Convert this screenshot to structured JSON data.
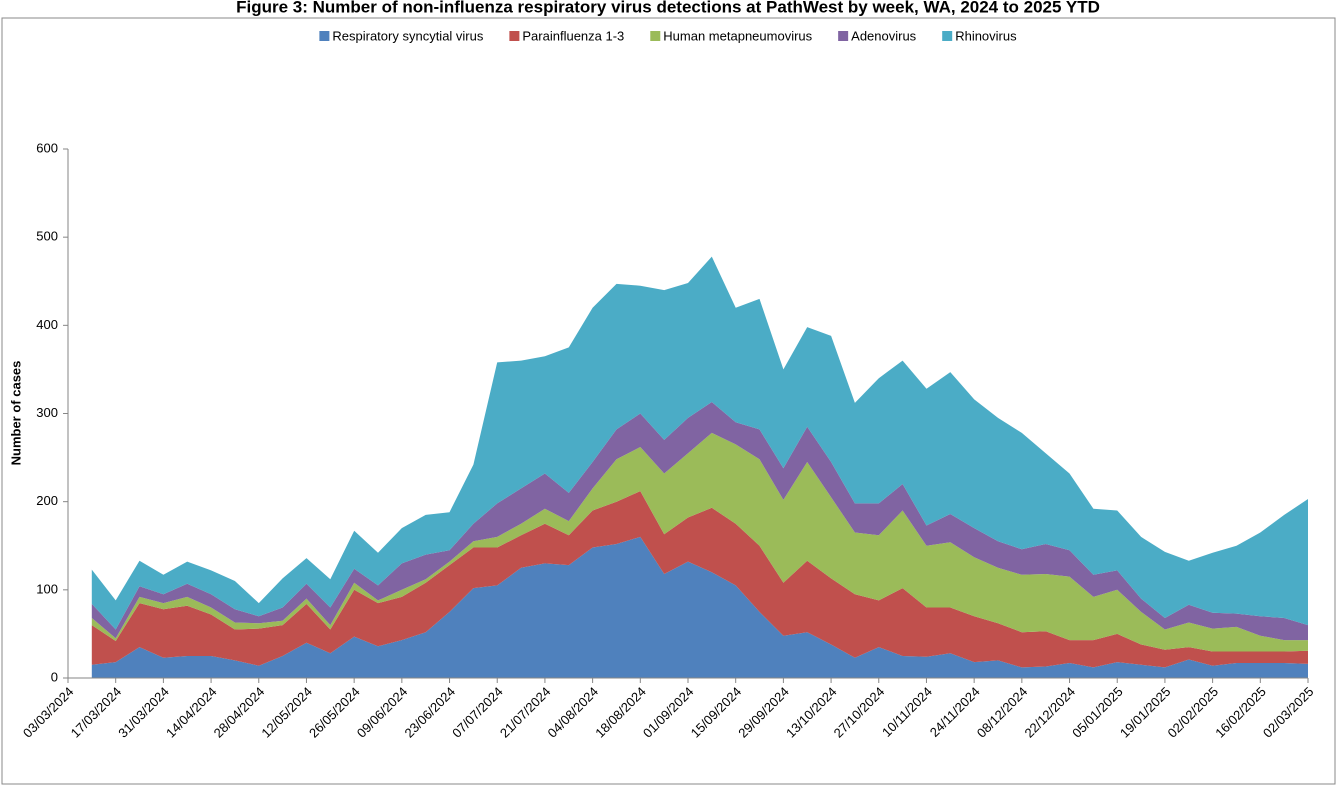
{
  "chart_data": {
    "type": "stacked_area",
    "title": "Figure 3: Number of non-influenza respiratory virus detections at PathWest by week, WA, 2024 to 2025 YTD",
    "y_axis_label": "Number of cases",
    "ylim": [
      0,
      600
    ],
    "yticks": [
      0,
      100,
      200,
      300,
      400,
      500,
      600
    ],
    "grid": false,
    "legend": "top",
    "categories": [
      "03/03/2024",
      null,
      "17/03/2024",
      null,
      "31/03/2024",
      null,
      "14/04/2024",
      null,
      "28/04/2024",
      null,
      "12/05/2024",
      null,
      "26/05/2024",
      null,
      "09/06/2024",
      null,
      "23/06/2024",
      null,
      "07/07/2024",
      null,
      "21/07/2024",
      null,
      "04/08/2024",
      null,
      "18/08/2024",
      null,
      "01/09/2024",
      null,
      "15/09/2024",
      null,
      "29/09/2024",
      null,
      "13/10/2024",
      null,
      "27/10/2024",
      null,
      "10/11/2024",
      null,
      "24/11/2024",
      null,
      "08/12/2024",
      null,
      "22/12/2024",
      null,
      "05/01/2025",
      null,
      "19/01/2025",
      null,
      "02/02/2025",
      null,
      "16/02/2025",
      null,
      "02/03/2025"
    ],
    "series": [
      {
        "name": "Respiratory syncytial virus",
        "color": "#4f81bd",
        "values": [
          null,
          15,
          18,
          35,
          23,
          25,
          25,
          20,
          14,
          25,
          40,
          28,
          47,
          36,
          43,
          52,
          75,
          102,
          105,
          125,
          130,
          128,
          148,
          152,
          160,
          118,
          132,
          120,
          105,
          75,
          48,
          52,
          38,
          23,
          35,
          25,
          24,
          28,
          18,
          20,
          12,
          13,
          17,
          12,
          18,
          15,
          12,
          21,
          14,
          17,
          17,
          17,
          16
        ]
      },
      {
        "name": "Parainfluenza 1-3",
        "color": "#c0504d",
        "values": [
          null,
          45,
          24,
          50,
          55,
          57,
          47,
          35,
          42,
          35,
          44,
          27,
          53,
          49,
          49,
          56,
          53,
          46,
          43,
          37,
          45,
          34,
          42,
          48,
          52,
          45,
          50,
          73,
          70,
          75,
          60,
          81,
          75,
          72,
          53,
          77,
          56,
          52,
          52,
          42,
          40,
          40,
          26,
          31,
          32,
          23,
          20,
          14,
          16,
          13,
          13,
          13,
          15
        ]
      },
      {
        "name": "Human metapneumovirus",
        "color": "#9bbb59",
        "values": [
          null,
          8,
          3,
          7,
          7,
          10,
          8,
          8,
          6,
          5,
          6,
          5,
          8,
          3,
          8,
          4,
          4,
          7,
          12,
          13,
          17,
          16,
          25,
          48,
          50,
          69,
          73,
          85,
          90,
          98,
          94,
          112,
          92,
          70,
          74,
          88,
          70,
          74,
          67,
          63,
          65,
          65,
          72,
          49,
          50,
          37,
          23,
          28,
          26,
          28,
          18,
          13,
          12
        ]
      },
      {
        "name": "Adenovirus",
        "color": "#8064a2",
        "values": [
          null,
          16,
          10,
          12,
          10,
          15,
          15,
          15,
          8,
          15,
          17,
          20,
          16,
          17,
          30,
          28,
          13,
          20,
          38,
          40,
          40,
          32,
          30,
          34,
          38,
          38,
          40,
          35,
          25,
          34,
          36,
          40,
          40,
          33,
          36,
          30,
          23,
          32,
          33,
          30,
          29,
          34,
          30,
          25,
          22,
          15,
          13,
          20,
          18,
          15,
          22,
          25,
          17
        ]
      },
      {
        "name": "Rhinovirus",
        "color": "#4bacc6",
        "values": [
          null,
          39,
          33,
          29,
          22,
          25,
          27,
          32,
          15,
          33,
          29,
          32,
          43,
          37,
          40,
          45,
          43,
          67,
          160,
          145,
          133,
          165,
          175,
          165,
          145,
          170,
          153,
          165,
          130,
          148,
          112,
          113,
          143,
          114,
          142,
          140,
          155,
          161,
          146,
          140,
          132,
          103,
          87,
          75,
          68,
          70,
          75,
          50,
          68,
          77,
          95,
          117,
          143
        ]
      }
    ]
  }
}
